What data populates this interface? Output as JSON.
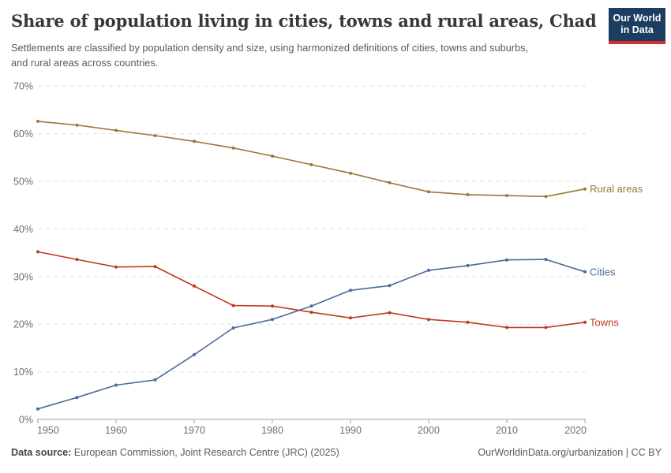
{
  "header": {
    "title": "Share of population living in cities, towns and rural areas, Chad",
    "subtitle": "Settlements are classified by population density and size, using harmonized definitions of cities, towns and suburbs, and rural areas across countries.",
    "logo": {
      "line1": "Our World",
      "line2": "in Data",
      "bg_color": "#1d3d63",
      "accent_color": "#d2302c"
    }
  },
  "chart_data": {
    "type": "line",
    "title": "Share of population living in cities, towns and rural areas, Chad",
    "x": [
      1950,
      1955,
      1960,
      1965,
      1970,
      1975,
      1980,
      1985,
      1990,
      1995,
      2000,
      2005,
      2010,
      2015,
      2020
    ],
    "series": [
      {
        "name": "Cities",
        "color": "#4c6a9c",
        "values": [
          2.2,
          4.6,
          7.2,
          8.3,
          13.6,
          19.2,
          21.0,
          23.8,
          27.1,
          28.1,
          31.3,
          32.3,
          33.5,
          33.6,
          31.0
        ]
      },
      {
        "name": "Towns",
        "color": "#bf3a1d",
        "values": [
          35.2,
          33.6,
          32.0,
          32.1,
          28.0,
          23.9,
          23.8,
          22.5,
          21.3,
          22.4,
          21.0,
          20.4,
          19.3,
          19.3,
          20.4
        ]
      },
      {
        "name": "Rural areas",
        "color": "#9d7739",
        "values": [
          62.6,
          61.8,
          60.7,
          59.6,
          58.4,
          57.0,
          55.3,
          53.5,
          51.7,
          49.7,
          47.8,
          47.2,
          47.0,
          46.8,
          48.4
        ]
      }
    ],
    "xlabel": "",
    "ylabel": "",
    "ylim": [
      0,
      70
    ],
    "yticks": [
      0,
      10,
      20,
      30,
      40,
      50,
      60,
      70
    ],
    "ytick_suffix": "%",
    "xticks": [
      1950,
      1960,
      1970,
      1980,
      1990,
      2000,
      2010,
      2020
    ],
    "grid": "horizontal-dashed",
    "legend": "line-end-labels",
    "style": {
      "grid_color": "#e0e0e0",
      "axis_color": "#a3a3a3",
      "tick_label_color": "#6e6e6e"
    }
  },
  "footer": {
    "data_source_label": "Data source:",
    "data_source_value": "European Commission, Joint Research Centre (JRC) (2025)",
    "right_text": "OurWorldinData.org/urbanization | CC BY"
  }
}
